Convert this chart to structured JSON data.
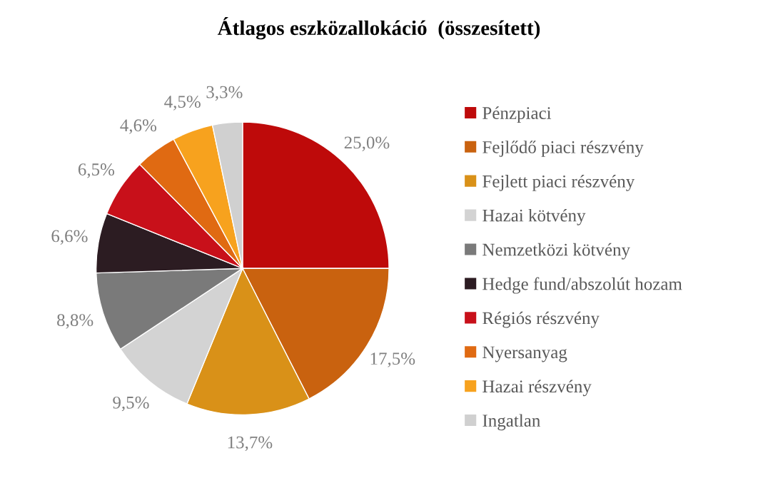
{
  "chart_data": {
    "type": "pie",
    "title": "Átlagos eszközallokáció  (összesített)",
    "categories": [
      "Pénzpiaci",
      "Fejlődő piaci részvény",
      "Fejlett piaci részvény",
      "Hazai kötvény",
      "Nemzetközi kötvény",
      "Hedge fund/abszolút hozam",
      "Régiós részvény",
      "Nyersanyag",
      "Hazai részvény",
      "Ingatlan"
    ],
    "values": [
      25.0,
      17.5,
      13.7,
      9.5,
      8.8,
      6.6,
      6.5,
      4.6,
      4.5,
      3.3
    ],
    "value_labels": [
      "25,0%",
      "17,5%",
      "13,7%",
      "9,5%",
      "8,8%",
      "6,6%",
      "6,5%",
      "4,6%",
      "4,5%",
      "3,3%"
    ],
    "colors": [
      "#be0a0a",
      "#c9620f",
      "#d99118",
      "#d3d3d3",
      "#7a7a7a",
      "#2c1c22",
      "#c8101a",
      "#e06a12",
      "#f7a21e",
      "#d0d0d0"
    ],
    "legend": "right"
  }
}
